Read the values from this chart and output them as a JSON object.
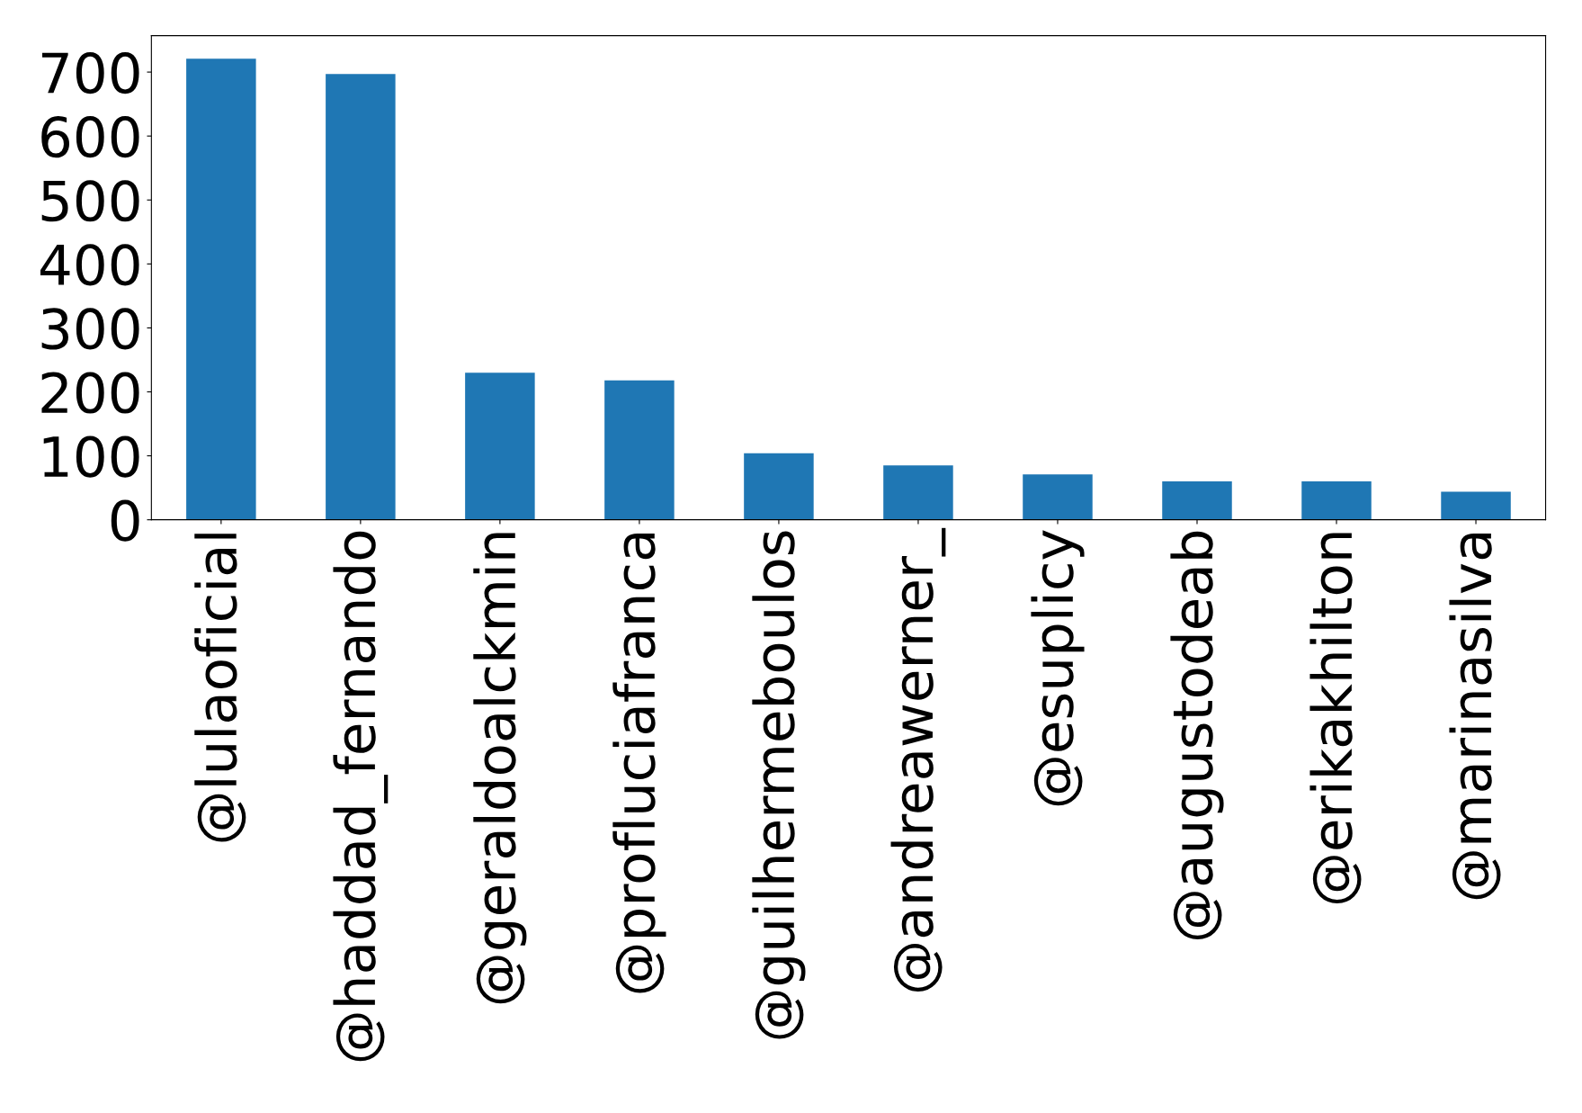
{
  "chart_data": {
    "type": "bar",
    "categories": [
      "@lulaoficial",
      "@haddad_fernando",
      "@geraldoalckmin",
      "@profluciafranca",
      "@guilhermeboulos",
      "@andreawerner_",
      "@esuplicy",
      "@augustodeab",
      "@erikakhilton",
      "@marinasilva"
    ],
    "values": [
      721,
      697,
      230,
      218,
      104,
      85,
      71,
      60,
      60,
      44
    ],
    "color": "#1f77b4",
    "ylim": [
      0,
      757
    ],
    "yticks": [
      0,
      100,
      200,
      300,
      400,
      500,
      600,
      700
    ],
    "grid": false
  }
}
